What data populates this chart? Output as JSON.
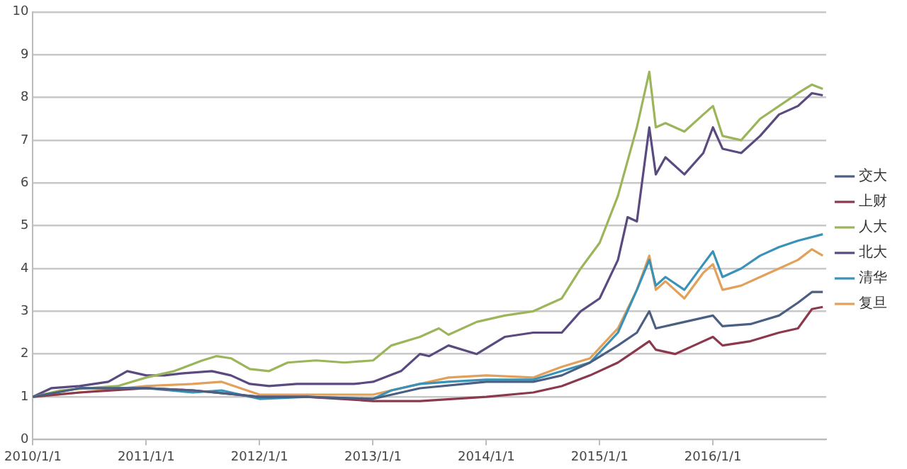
{
  "chart_data": {
    "type": "line",
    "legend": "right",
    "grid": "y",
    "marker": "none",
    "line_style": "solid",
    "xlim": [
      "2010-01-01",
      "2016-12-31"
    ],
    "xticks": [
      {
        "value": "2010-01-01",
        "label": "2010/1/1"
      },
      {
        "value": "2011-01-01",
        "label": "2011/1/1"
      },
      {
        "value": "2012-01-01",
        "label": "2012/1/1"
      },
      {
        "value": "2013-01-01",
        "label": "2013/1/1"
      },
      {
        "value": "2014-01-01",
        "label": "2014/1/1"
      },
      {
        "value": "2015-01-01",
        "label": "2015/1/1"
      },
      {
        "value": "2016-01-01",
        "label": "2016/1/1"
      }
    ],
    "ylim": [
      0,
      10
    ],
    "yticks": [
      0,
      1,
      2,
      3,
      4,
      5,
      6,
      7,
      8,
      9,
      10
    ],
    "series": [
      {
        "name": "交大",
        "color": "#4a5f82",
        "x": [
          "2010-01-01",
          "2010-06-01",
          "2011-01-01",
          "2011-06-01",
          "2012-01-01",
          "2012-06-01",
          "2013-01-01",
          "2013-06-01",
          "2014-01-01",
          "2014-06-01",
          "2014-09-01",
          "2014-12-01",
          "2015-03-01",
          "2015-05-01",
          "2015-06-10",
          "2015-07-01",
          "2015-09-01",
          "2015-11-01",
          "2016-01-01",
          "2016-02-01",
          "2016-05-01",
          "2016-08-01",
          "2016-10-01",
          "2016-11-15",
          "2016-12-20"
        ],
        "values": [
          1.0,
          1.2,
          1.2,
          1.15,
          1.0,
          1.0,
          0.95,
          1.2,
          1.35,
          1.35,
          1.5,
          1.8,
          2.2,
          2.5,
          3.0,
          2.6,
          2.7,
          2.8,
          2.9,
          2.65,
          2.7,
          2.9,
          3.2,
          3.45,
          3.45
        ]
      },
      {
        "name": "上财",
        "color": "#8b3a4e",
        "x": [
          "2010-01-01",
          "2010-06-01",
          "2011-01-01",
          "2011-06-01",
          "2012-01-01",
          "2012-06-01",
          "2013-01-01",
          "2013-06-01",
          "2014-01-01",
          "2014-06-01",
          "2014-09-01",
          "2014-12-01",
          "2015-03-01",
          "2015-05-01",
          "2015-06-10",
          "2015-07-01",
          "2015-09-01",
          "2015-11-01",
          "2016-01-01",
          "2016-02-01",
          "2016-05-01",
          "2016-08-01",
          "2016-10-01",
          "2016-11-15",
          "2016-12-20"
        ],
        "values": [
          1.0,
          1.1,
          1.2,
          1.15,
          1.0,
          1.0,
          0.9,
          0.9,
          1.0,
          1.1,
          1.25,
          1.5,
          1.8,
          2.1,
          2.3,
          2.1,
          2.0,
          2.2,
          2.4,
          2.2,
          2.3,
          2.5,
          2.6,
          3.05,
          3.1
        ]
      },
      {
        "name": "人大",
        "color": "#9bb55a",
        "x": [
          "2010-01-01",
          "2010-04-01",
          "2010-07-01",
          "2010-10-01",
          "2011-01-01",
          "2011-04-01",
          "2011-07-01",
          "2011-08-15",
          "2011-10-01",
          "2011-12-01",
          "2012-02-01",
          "2012-04-01",
          "2012-07-01",
          "2012-10-01",
          "2013-01-01",
          "2013-03-01",
          "2013-06-01",
          "2013-08-01",
          "2013-09-01",
          "2013-12-01",
          "2014-03-01",
          "2014-06-01",
          "2014-09-01",
          "2014-11-01",
          "2015-01-01",
          "2015-03-01",
          "2015-05-01",
          "2015-06-10",
          "2015-07-01",
          "2015-08-01",
          "2015-10-01",
          "2015-12-01",
          "2016-01-01",
          "2016-02-01",
          "2016-04-01",
          "2016-06-01",
          "2016-08-01",
          "2016-10-01",
          "2016-11-15",
          "2016-12-20"
        ],
        "values": [
          1.0,
          1.15,
          1.2,
          1.25,
          1.45,
          1.6,
          1.85,
          1.95,
          1.9,
          1.65,
          1.6,
          1.8,
          1.85,
          1.8,
          1.85,
          2.2,
          2.4,
          2.6,
          2.45,
          2.75,
          2.9,
          3.0,
          3.3,
          4.0,
          4.6,
          5.7,
          7.3,
          8.6,
          7.3,
          7.4,
          7.2,
          7.6,
          7.8,
          7.1,
          7.0,
          7.5,
          7.8,
          8.1,
          8.3,
          8.2
        ]
      },
      {
        "name": "北大",
        "color": "#5b4a80",
        "x": [
          "2010-01-01",
          "2010-03-01",
          "2010-06-01",
          "2010-09-01",
          "2010-11-01",
          "2011-01-01",
          "2011-03-01",
          "2011-05-01",
          "2011-08-01",
          "2011-10-01",
          "2011-12-01",
          "2012-02-01",
          "2012-05-01",
          "2012-08-01",
          "2012-11-01",
          "2013-01-01",
          "2013-04-01",
          "2013-06-01",
          "2013-07-01",
          "2013-09-01",
          "2013-12-01",
          "2014-03-01",
          "2014-06-01",
          "2014-09-01",
          "2014-11-01",
          "2015-01-01",
          "2015-03-01",
          "2015-04-01",
          "2015-05-01",
          "2015-06-10",
          "2015-07-01",
          "2015-08-01",
          "2015-10-01",
          "2015-12-01",
          "2016-01-01",
          "2016-02-01",
          "2016-04-01",
          "2016-06-01",
          "2016-08-01",
          "2016-10-01",
          "2016-11-15",
          "2016-12-20"
        ],
        "values": [
          1.0,
          1.2,
          1.25,
          1.35,
          1.6,
          1.5,
          1.5,
          1.55,
          1.6,
          1.5,
          1.3,
          1.25,
          1.3,
          1.3,
          1.3,
          1.35,
          1.6,
          2.0,
          1.95,
          2.2,
          2.0,
          2.4,
          2.5,
          2.5,
          3.0,
          3.3,
          4.2,
          5.2,
          5.1,
          7.3,
          6.2,
          6.6,
          6.2,
          6.7,
          7.3,
          6.8,
          6.7,
          7.1,
          7.6,
          7.8,
          8.1,
          8.05
        ]
      },
      {
        "name": "清华",
        "color": "#3a92b8",
        "x": [
          "2010-01-01",
          "2010-06-01",
          "2011-01-01",
          "2011-06-01",
          "2011-09-01",
          "2012-01-01",
          "2012-06-01",
          "2013-01-01",
          "2013-03-01",
          "2013-06-01",
          "2013-09-01",
          "2014-01-01",
          "2014-06-01",
          "2014-09-01",
          "2014-12-01",
          "2015-03-01",
          "2015-05-01",
          "2015-06-10",
          "2015-07-01",
          "2015-08-01",
          "2015-10-01",
          "2015-12-01",
          "2016-01-01",
          "2016-02-01",
          "2016-04-01",
          "2016-06-01",
          "2016-08-01",
          "2016-10-01",
          "2016-12-20"
        ],
        "values": [
          1.0,
          1.2,
          1.2,
          1.1,
          1.15,
          0.95,
          1.0,
          0.95,
          1.15,
          1.3,
          1.35,
          1.4,
          1.4,
          1.6,
          1.8,
          2.5,
          3.5,
          4.2,
          3.6,
          3.8,
          3.5,
          4.1,
          4.4,
          3.8,
          4.0,
          4.3,
          4.5,
          4.65,
          4.8
        ]
      },
      {
        "name": "复旦",
        "color": "#e2a05a",
        "x": [
          "2010-01-01",
          "2010-06-01",
          "2011-01-01",
          "2011-06-01",
          "2011-09-01",
          "2012-01-01",
          "2012-06-01",
          "2013-01-01",
          "2013-06-01",
          "2013-09-01",
          "2014-01-01",
          "2014-06-01",
          "2014-09-01",
          "2014-12-01",
          "2015-03-01",
          "2015-05-01",
          "2015-06-10",
          "2015-07-01",
          "2015-08-01",
          "2015-10-01",
          "2015-12-01",
          "2016-01-01",
          "2016-02-01",
          "2016-04-01",
          "2016-06-01",
          "2016-08-01",
          "2016-10-01",
          "2016-11-15",
          "2016-12-20"
        ],
        "values": [
          1.0,
          1.1,
          1.25,
          1.3,
          1.35,
          1.05,
          1.05,
          1.05,
          1.3,
          1.45,
          1.5,
          1.45,
          1.7,
          1.9,
          2.6,
          3.5,
          4.3,
          3.5,
          3.7,
          3.3,
          3.9,
          4.1,
          3.5,
          3.6,
          3.8,
          4.0,
          4.2,
          4.45,
          4.3
        ]
      }
    ]
  }
}
